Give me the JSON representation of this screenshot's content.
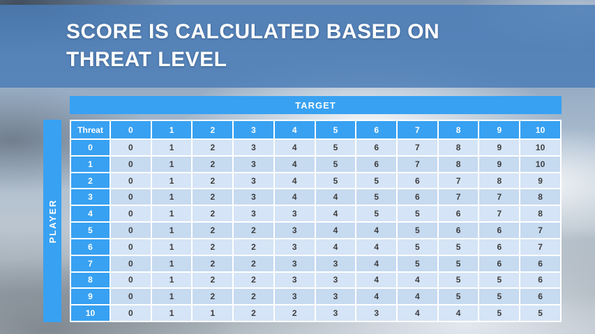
{
  "slide": {
    "title_line1": "SCORE IS CALCULATED BASED ON",
    "title_line2": "THREAT LEVEL"
  },
  "table": {
    "target_label": "TARGET",
    "player_label": "PLAYER"
  },
  "chart_data": {
    "type": "table",
    "title": "SCORE IS CALCULATED BASED ON THREAT LEVEL",
    "col_axis": "TARGET",
    "row_axis": "PLAYER",
    "columns": [
      "Threat",
      "0",
      "1",
      "2",
      "3",
      "4",
      "5",
      "6",
      "7",
      "8",
      "9",
      "10"
    ],
    "rows": [
      [
        0,
        0,
        1,
        2,
        3,
        4,
        5,
        6,
        7,
        8,
        9,
        10
      ],
      [
        1,
        0,
        1,
        2,
        3,
        4,
        5,
        6,
        7,
        8,
        9,
        10
      ],
      [
        2,
        0,
        1,
        2,
        3,
        4,
        5,
        5,
        6,
        7,
        8,
        9
      ],
      [
        3,
        0,
        1,
        2,
        3,
        4,
        4,
        5,
        6,
        7,
        7,
        8
      ],
      [
        4,
        0,
        1,
        2,
        3,
        3,
        4,
        5,
        5,
        6,
        7,
        8
      ],
      [
        5,
        0,
        1,
        2,
        2,
        3,
        4,
        4,
        5,
        6,
        6,
        7
      ],
      [
        6,
        0,
        1,
        2,
        2,
        3,
        4,
        4,
        5,
        5,
        6,
        7
      ],
      [
        7,
        0,
        1,
        2,
        2,
        3,
        3,
        4,
        5,
        5,
        6,
        6
      ],
      [
        8,
        0,
        1,
        2,
        2,
        3,
        3,
        4,
        4,
        5,
        5,
        6
      ],
      [
        9,
        0,
        1,
        2,
        2,
        3,
        3,
        4,
        4,
        5,
        5,
        6
      ],
      [
        10,
        0,
        1,
        1,
        2,
        2,
        3,
        3,
        4,
        4,
        5,
        5
      ]
    ]
  },
  "colors": {
    "accent_blue": "#38a1f2",
    "banner_blue": "#4b7db8",
    "band_light": "#d5e4f6",
    "band_dark": "#c6daf0",
    "cell_text": "#3d3d3d"
  }
}
